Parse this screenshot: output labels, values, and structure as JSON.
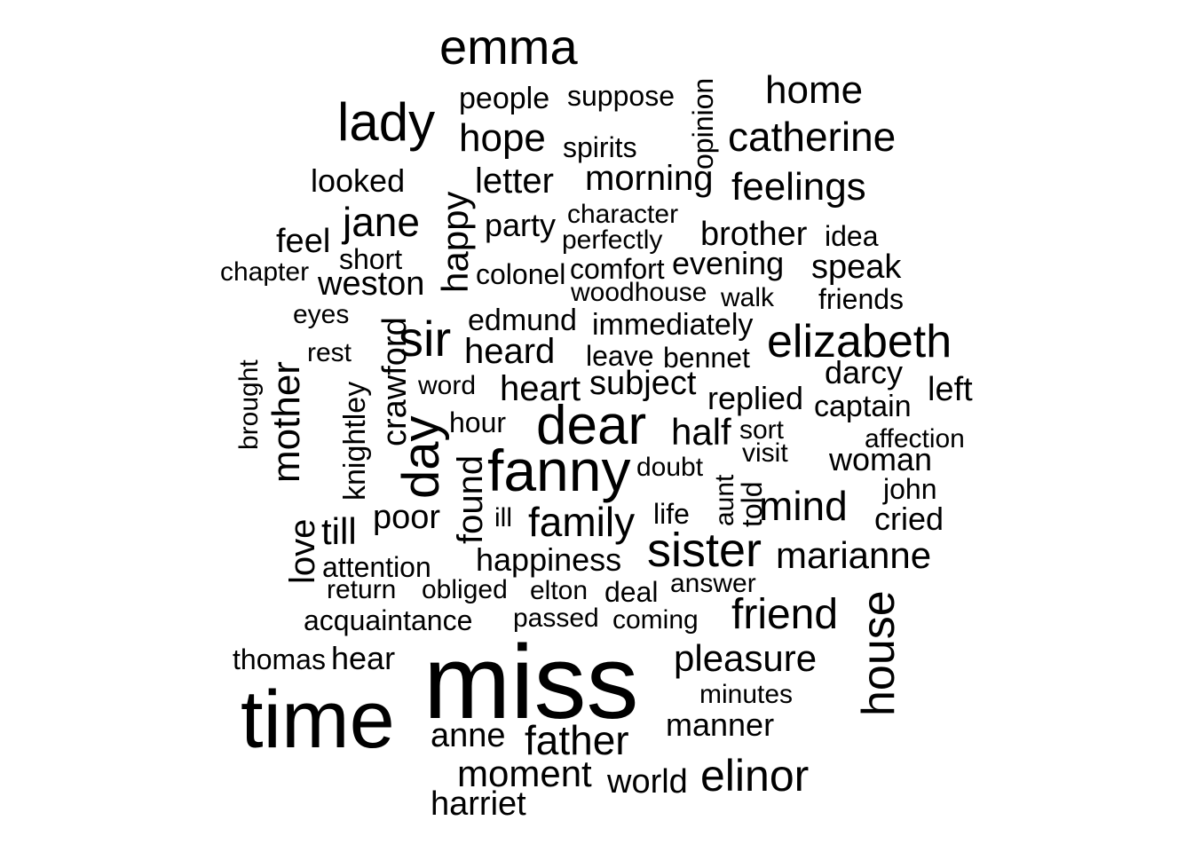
{
  "color": "#000000",
  "background": "#ffffff",
  "words": [
    {
      "text": "emma"
    },
    {
      "text": "lady"
    },
    {
      "text": "people"
    },
    {
      "text": "suppose"
    },
    {
      "text": "opinion"
    },
    {
      "text": "home"
    },
    {
      "text": "hope"
    },
    {
      "text": "spirits"
    },
    {
      "text": "catherine"
    },
    {
      "text": "looked"
    },
    {
      "text": "letter"
    },
    {
      "text": "morning"
    },
    {
      "text": "feelings"
    },
    {
      "text": "happy"
    },
    {
      "text": "jane"
    },
    {
      "text": "party"
    },
    {
      "text": "character"
    },
    {
      "text": "perfectly"
    },
    {
      "text": "brother"
    },
    {
      "text": "idea"
    },
    {
      "text": "feel"
    },
    {
      "text": "short"
    },
    {
      "text": "chapter"
    },
    {
      "text": "colonel"
    },
    {
      "text": "comfort"
    },
    {
      "text": "evening"
    },
    {
      "text": "speak"
    },
    {
      "text": "weston"
    },
    {
      "text": "woodhouse"
    },
    {
      "text": "walk"
    },
    {
      "text": "friends"
    },
    {
      "text": "eyes"
    },
    {
      "text": "edmund"
    },
    {
      "text": "immediately"
    },
    {
      "text": "sir"
    },
    {
      "text": "elizabeth"
    },
    {
      "text": "rest"
    },
    {
      "text": "heard"
    },
    {
      "text": "leave"
    },
    {
      "text": "bennet"
    },
    {
      "text": "brought"
    },
    {
      "text": "crawford"
    },
    {
      "text": "darcy"
    },
    {
      "text": "mother"
    },
    {
      "text": "word"
    },
    {
      "text": "heart"
    },
    {
      "text": "subject"
    },
    {
      "text": "left"
    },
    {
      "text": "knightley"
    },
    {
      "text": "replied"
    },
    {
      "text": "captain"
    },
    {
      "text": "day"
    },
    {
      "text": "hour"
    },
    {
      "text": "dear"
    },
    {
      "text": "half"
    },
    {
      "text": "sort"
    },
    {
      "text": "affection"
    },
    {
      "text": "visit"
    },
    {
      "text": "woman"
    },
    {
      "text": "fanny"
    },
    {
      "text": "doubt"
    },
    {
      "text": "aunt"
    },
    {
      "text": "told"
    },
    {
      "text": "john"
    },
    {
      "text": "found"
    },
    {
      "text": "mind"
    },
    {
      "text": "love"
    },
    {
      "text": "poor"
    },
    {
      "text": "ill"
    },
    {
      "text": "life"
    },
    {
      "text": "till"
    },
    {
      "text": "family"
    },
    {
      "text": "cried"
    },
    {
      "text": "sister"
    },
    {
      "text": "marianne"
    },
    {
      "text": "attention"
    },
    {
      "text": "happiness"
    },
    {
      "text": "house"
    },
    {
      "text": "return"
    },
    {
      "text": "obliged"
    },
    {
      "text": "elton"
    },
    {
      "text": "deal"
    },
    {
      "text": "answer"
    },
    {
      "text": "friend"
    },
    {
      "text": "acquaintance"
    },
    {
      "text": "passed"
    },
    {
      "text": "coming"
    },
    {
      "text": "thomas"
    },
    {
      "text": "hear"
    },
    {
      "text": "pleasure"
    },
    {
      "text": "miss"
    },
    {
      "text": "minutes"
    },
    {
      "text": "time"
    },
    {
      "text": "manner"
    },
    {
      "text": "anne"
    },
    {
      "text": "father"
    },
    {
      "text": "moment"
    },
    {
      "text": "world"
    },
    {
      "text": "elinor"
    },
    {
      "text": "harriet"
    }
  ]
}
